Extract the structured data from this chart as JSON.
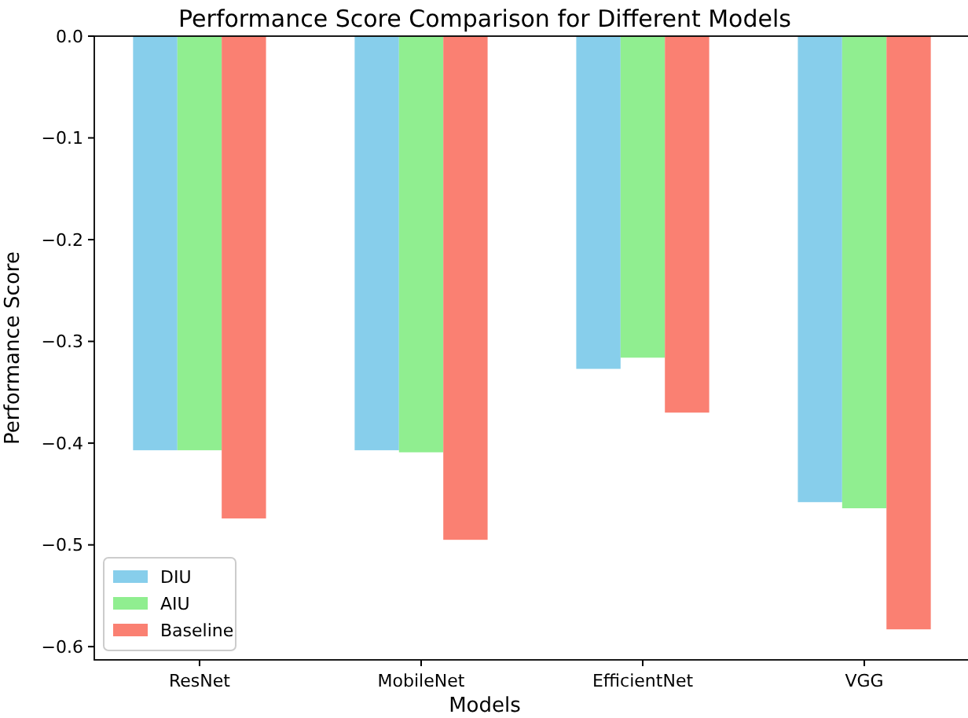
{
  "chart_data": {
    "type": "bar",
    "title": "Performance Score Comparison for Different Models",
    "xlabel": "Models",
    "ylabel": "Performance Score",
    "categories": [
      "ResNet",
      "MobileNet",
      "EfficientNet",
      "VGG"
    ],
    "series": [
      {
        "name": "DIU",
        "color": "#87ceeb",
        "values": [
          -0.407,
          -0.407,
          -0.327,
          -0.458
        ]
      },
      {
        "name": "AIU",
        "color": "#90ee90",
        "values": [
          -0.407,
          -0.409,
          -0.316,
          -0.464
        ]
      },
      {
        "name": "Baseline",
        "color": "#fa8072",
        "values": [
          -0.474,
          -0.495,
          -0.37,
          -0.583
        ]
      }
    ],
    "ylim": [
      -0.613,
      0
    ],
    "yticks": [
      {
        "value": -0.6,
        "label": "−0.6"
      },
      {
        "value": -0.5,
        "label": "−0.5"
      },
      {
        "value": -0.4,
        "label": "−0.4"
      },
      {
        "value": -0.3,
        "label": "−0.3"
      },
      {
        "value": -0.2,
        "label": "−0.2"
      },
      {
        "value": -0.1,
        "label": "−0.1"
      },
      {
        "value": 0,
        "label": "0.0"
      }
    ],
    "legend": "bottom left"
  }
}
